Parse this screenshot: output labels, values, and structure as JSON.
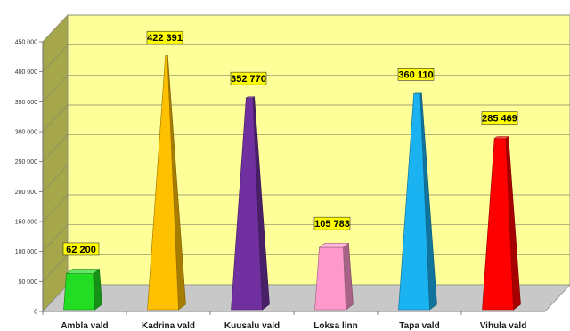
{
  "chart_data": {
    "type": "bar",
    "categories": [
      "Ambla vald",
      "Kadrina vald",
      "Kuusalu vald",
      "Loksa linn",
      "Tapa vald",
      "Vihula vald"
    ],
    "values": [
      62200,
      422391,
      352770,
      105783,
      360110,
      285469
    ],
    "data_labels": [
      "62 200",
      "422 391",
      "352 770",
      "105 783",
      "360 110",
      "285 469"
    ],
    "colors": [
      "#22dd22",
      "#ffc000",
      "#7030a0",
      "#ff99cc",
      "#1ab2f0",
      "#ff0000"
    ],
    "ylim": [
      0,
      450000
    ],
    "y_ticks": [
      0,
      50000,
      100000,
      150000,
      200000,
      250000,
      300000,
      350000,
      400000,
      450000
    ],
    "y_tick_labels": [
      "0",
      "50 000",
      "100 000",
      "150 000",
      "200 000",
      "250 000",
      "300 000",
      "350 000",
      "400 000",
      "450 000"
    ],
    "grid": true,
    "style": "3d-pyramid",
    "background_color": "#ffff99",
    "data_label_background": "#ffff00",
    "title": "",
    "xlabel": "",
    "ylabel": ""
  }
}
